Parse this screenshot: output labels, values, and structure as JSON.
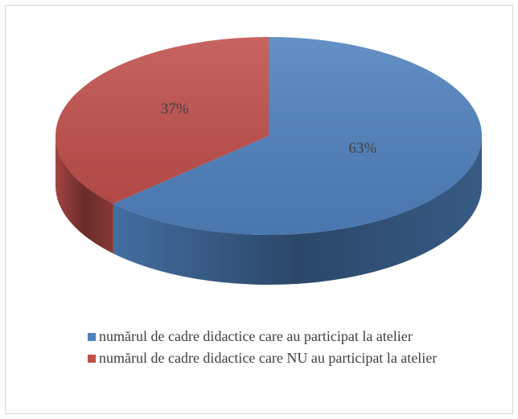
{
  "chart_data": {
    "type": "pie",
    "categories": [
      "numărul de cadre didactice care au participat la atelier",
      "numărul de cadre didactice care NU au participat la atelier"
    ],
    "values": [
      63,
      37
    ],
    "value_labels": [
      "63%",
      "37%"
    ],
    "colors": [
      "#4f81bd",
      "#c0504d"
    ],
    "legend": "bottom"
  }
}
